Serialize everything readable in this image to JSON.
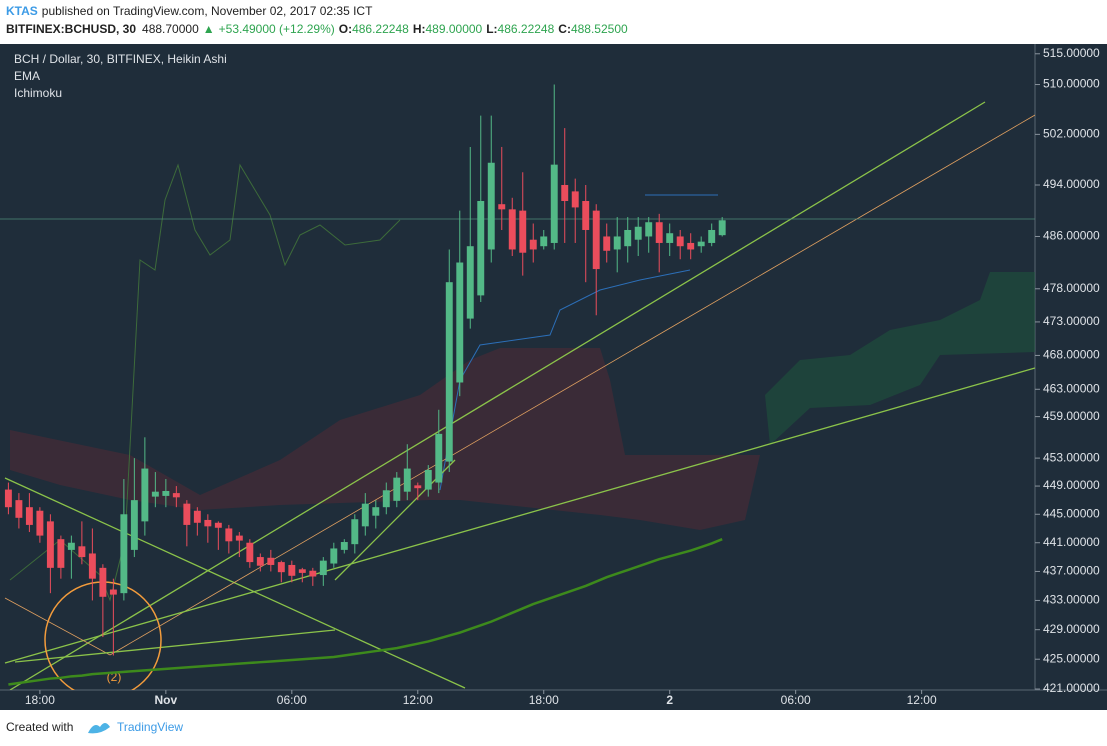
{
  "header": {
    "author": "KTAS",
    "published": "published on TradingView.com, November 02, 2017 02:35 ICT",
    "symbol": "BITFINEX:BCHUSD, 30",
    "last": "488.70000",
    "arrow": "▲",
    "change": "+53.49000 (+12.29%)",
    "ohlc": [
      {
        "key": "O:",
        "value": "486.22248"
      },
      {
        "key": "H:",
        "value": "489.00000"
      },
      {
        "key": "L:",
        "value": "486.22248"
      },
      {
        "key": "C:",
        "value": "488.52500"
      }
    ]
  },
  "chart_data": {
    "type": "candlestick",
    "legend": [
      "BCH / Dollar, 30, BITFINEX, Heikin Ashi",
      "EMA",
      "Ichimoku"
    ],
    "annotations": [
      "(2)"
    ],
    "log_scale": true,
    "up_color": "#53b987",
    "down_color": "#eb4d5c",
    "ema_color": "#3d8a1c",
    "price_line_color": "#4f8a78",
    "price_line": 488.7,
    "x": [
      0,
      1,
      2,
      3,
      4,
      5,
      6,
      7,
      8,
      9,
      10,
      11,
      12,
      13,
      14,
      15,
      16,
      17,
      18,
      19,
      20,
      21,
      22,
      23,
      24,
      25,
      26,
      27,
      28,
      29,
      30,
      31,
      32,
      33,
      34,
      35,
      36,
      37,
      38,
      39,
      40,
      41,
      42,
      43,
      44,
      45,
      46,
      47,
      48,
      49,
      50,
      51,
      52,
      53,
      54,
      55,
      56,
      57,
      58,
      59,
      60,
      61,
      62,
      63,
      64,
      65,
      66,
      67,
      68
    ],
    "open": [
      448.5,
      447,
      446,
      445.5,
      444,
      441.5,
      440,
      440.5,
      439.5,
      437.5,
      434.5,
      434,
      440,
      444,
      447.5,
      447.6,
      448,
      446.5,
      445.5,
      444.2,
      443.8,
      443,
      442,
      441,
      439,
      438.9,
      438.3,
      437.9,
      437.3,
      437.1,
      436.5,
      438.1,
      440,
      440.8,
      443.3,
      444.8,
      446,
      446.9,
      448.2,
      449.1,
      448.5,
      449.5,
      452.5,
      464,
      473.5,
      477,
      484,
      491,
      490.2,
      490,
      485.5,
      484.5,
      485,
      494,
      493,
      491.5,
      490,
      486,
      484,
      484.5,
      485.5,
      486,
      488.2,
      485,
      486,
      485,
      484.5,
      485,
      486.2
    ],
    "high": [
      449.5,
      448,
      448,
      446,
      445,
      442,
      442,
      444,
      443,
      438,
      436,
      450,
      453,
      456,
      451,
      450,
      449,
      447,
      446,
      445,
      444,
      443.5,
      442.5,
      441.5,
      439.5,
      440,
      438.5,
      438.5,
      437.5,
      437.5,
      439,
      441,
      441.5,
      445,
      448,
      447,
      449.5,
      451,
      455,
      449.5,
      452,
      460,
      484,
      490,
      500,
      505,
      505,
      500,
      492,
      496,
      488,
      487,
      510,
      503,
      495,
      494,
      491,
      488,
      489,
      489,
      489,
      489,
      489.5,
      488,
      487,
      486.5,
      486,
      488,
      489
    ],
    "low": [
      445,
      443,
      442.5,
      441,
      434,
      436,
      436,
      438,
      433,
      428,
      425.5,
      433,
      439,
      442,
      446,
      446,
      446,
      440.5,
      442,
      441,
      440,
      439.5,
      439,
      437.5,
      437,
      437,
      435.5,
      435.5,
      435.5,
      435,
      435,
      437.5,
      439.5,
      439.5,
      442,
      443,
      445,
      446,
      447,
      447,
      447.5,
      448,
      451,
      462,
      472,
      476,
      482,
      487,
      483,
      480,
      482,
      484,
      484,
      485,
      485,
      479,
      474,
      482,
      480.5,
      482,
      483,
      483.5,
      480.5,
      483,
      482.5,
      482.5,
      483.5,
      484.5,
      486
    ],
    "close": [
      446,
      444.5,
      443.5,
      442,
      437.5,
      437.5,
      441,
      439,
      436,
      433.5,
      433.8,
      445,
      447,
      451.5,
      448.2,
      448.3,
      447.4,
      443.5,
      443.8,
      443.3,
      443.1,
      441.2,
      441.3,
      438.3,
      437.8,
      437.9,
      436.9,
      436.4,
      436.8,
      436.3,
      438.5,
      440.2,
      441.1,
      444.3,
      446.5,
      446,
      448.4,
      450.2,
      451.5,
      448.7,
      451.3,
      456.5,
      479,
      482,
      484.5,
      491.5,
      497.5,
      490.2,
      484,
      483.5,
      484,
      486,
      497.2,
      491.5,
      490.5,
      487,
      481,
      483.8,
      486,
      487,
      487.5,
      488.2,
      485,
      486.5,
      484.5,
      484,
      485.2,
      487,
      488.5
    ],
    "ema": [
      421.6,
      421.8,
      422,
      422.2,
      422.4,
      422.5,
      422.7,
      422.8,
      423,
      423.1,
      423.2,
      423.3,
      423.4,
      423.5,
      423.6,
      423.7,
      423.8,
      423.9,
      424,
      424.1,
      424.2,
      424.3,
      424.4,
      424.5,
      424.6,
      424.7,
      424.8,
      424.9,
      425,
      425.1,
      425.2,
      425.3,
      425.5,
      425.7,
      425.9,
      426.1,
      426.3,
      426.5,
      426.8,
      427.1,
      427.4,
      427.8,
      428.2,
      428.6,
      429.1,
      429.6,
      430.1,
      430.7,
      431.3,
      431.9,
      432.5,
      433,
      433.5,
      434,
      434.5,
      435,
      435.6,
      436.2,
      436.7,
      437.2,
      437.7,
      438.2,
      438.7,
      439.1,
      439.5,
      439.9,
      440.4,
      440.9,
      441.5
    ],
    "xlim": [
      -0.8,
      97.8
    ],
    "xticks": [
      {
        "value": 3,
        "label": "18:00"
      },
      {
        "value": 15,
        "label": "Nov"
      },
      {
        "value": 27,
        "label": "06:00"
      },
      {
        "value": 39,
        "label": "12:00"
      },
      {
        "value": 51,
        "label": "18:00"
      },
      {
        "value": 63,
        "label": "2"
      },
      {
        "value": 75,
        "label": "06:00"
      },
      {
        "value": 87,
        "label": "12:00"
      }
    ],
    "ylim": [
      420.87,
      516.6
    ],
    "yticks": [
      {
        "value": 421,
        "label": "421.00000"
      },
      {
        "value": 425,
        "label": "425.00000"
      },
      {
        "value": 429,
        "label": "429.00000"
      },
      {
        "value": 433,
        "label": "433.00000"
      },
      {
        "value": 437,
        "label": "437.00000"
      },
      {
        "value": 441,
        "label": "441.00000"
      },
      {
        "value": 445,
        "label": "445.00000"
      },
      {
        "value": 449,
        "label": "449.00000"
      },
      {
        "value": 453,
        "label": "453.00000"
      },
      {
        "value": 459,
        "label": "459.00000"
      },
      {
        "value": 463,
        "label": "463.00000"
      },
      {
        "value": 468,
        "label": "468.00000"
      },
      {
        "value": 473,
        "label": "473.00000"
      },
      {
        "value": 478,
        "label": "478.00000"
      },
      {
        "value": 486,
        "label": "486.00000"
      },
      {
        "value": 494,
        "label": "494.00000"
      },
      {
        "value": 502,
        "label": "502.00000"
      },
      {
        "value": 510,
        "label": "510.00000"
      },
      {
        "value": 515,
        "label": "515.00000"
      }
    ]
  },
  "footer": {
    "created": "Created with",
    "brand": "TradingView"
  }
}
